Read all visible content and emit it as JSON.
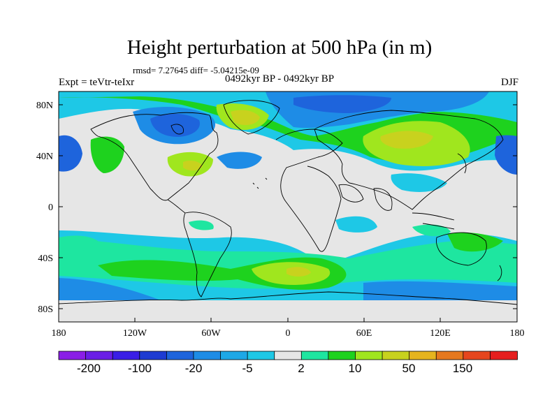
{
  "title": "Height perturbation at 500 hPa (in m)",
  "stats": "rmsd= 7.27645 diff= -5.04215e-09",
  "experiment": "Expt = teVtr-teIxr",
  "period": "0492kyr BP - 0492kyr BP",
  "season": "DJF",
  "axes": {
    "x_ticks": [
      "180",
      "120W",
      "60W",
      "0",
      "60E",
      "120E",
      "180"
    ],
    "y_ticks": [
      "80N",
      "40N",
      "0",
      "40S",
      "80S"
    ]
  },
  "colorbar": {
    "labels": [
      "-200",
      "-100",
      "-20",
      "-5",
      "2",
      "10",
      "50",
      "150"
    ],
    "colors": [
      "#8a1ee6",
      "#6a1ee6",
      "#3a1ee6",
      "#1e3cd2",
      "#1e64dc",
      "#1e8ce6",
      "#1ea8e6",
      "#1ec8e6",
      "#e6e6e6",
      "#1ee6a0",
      "#1ed21e",
      "#a0e61e",
      "#c8d21e",
      "#e6b41e",
      "#e6781e",
      "#e6461e",
      "#e61e1e"
    ]
  }
}
